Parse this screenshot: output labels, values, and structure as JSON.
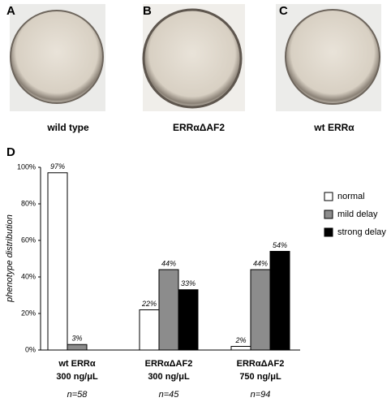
{
  "panels": [
    {
      "label": "A",
      "caption": "wild type"
    },
    {
      "label": "B",
      "caption": "ERRαΔAF2"
    },
    {
      "label": "C",
      "caption": "wt ERRα"
    }
  ],
  "chart_data": {
    "type": "bar",
    "panel_label": "D",
    "y_label": "phenotype distribution",
    "categories": [
      "wt ERRα",
      "ERRαΔAF2",
      "ERRαΔAF2"
    ],
    "category_sublabels": [
      "300 ng/μL",
      "300 ng/μL",
      "750 ng/μL"
    ],
    "category_notes": [
      "n=58",
      "n=45",
      "n=94"
    ],
    "series": [
      {
        "name": "normal",
        "color": "#ffffff",
        "values": [
          97,
          22,
          2
        ],
        "value_labels": [
          "97%",
          "22%",
          "2%"
        ]
      },
      {
        "name": "mild delay",
        "color": "#8c8c8c",
        "values": [
          3,
          44,
          44
        ],
        "value_labels": [
          "3%",
          "44%",
          "44%"
        ]
      },
      {
        "name": "strong delay",
        "color": "#000000",
        "values": [
          null,
          33,
          54
        ],
        "value_labels": [
          null,
          "33%",
          "54%"
        ]
      }
    ],
    "ylim": [
      0,
      100
    ],
    "yticks": [
      {
        "value": 0,
        "label": "0%"
      },
      {
        "value": 20,
        "label": "20%"
      },
      {
        "value": 40,
        "label": "40%"
      },
      {
        "value": 60,
        "label": "60%"
      },
      {
        "value": 80,
        "label": "80%"
      },
      {
        "value": 100,
        "label": "100%"
      }
    ],
    "legend": "right"
  }
}
